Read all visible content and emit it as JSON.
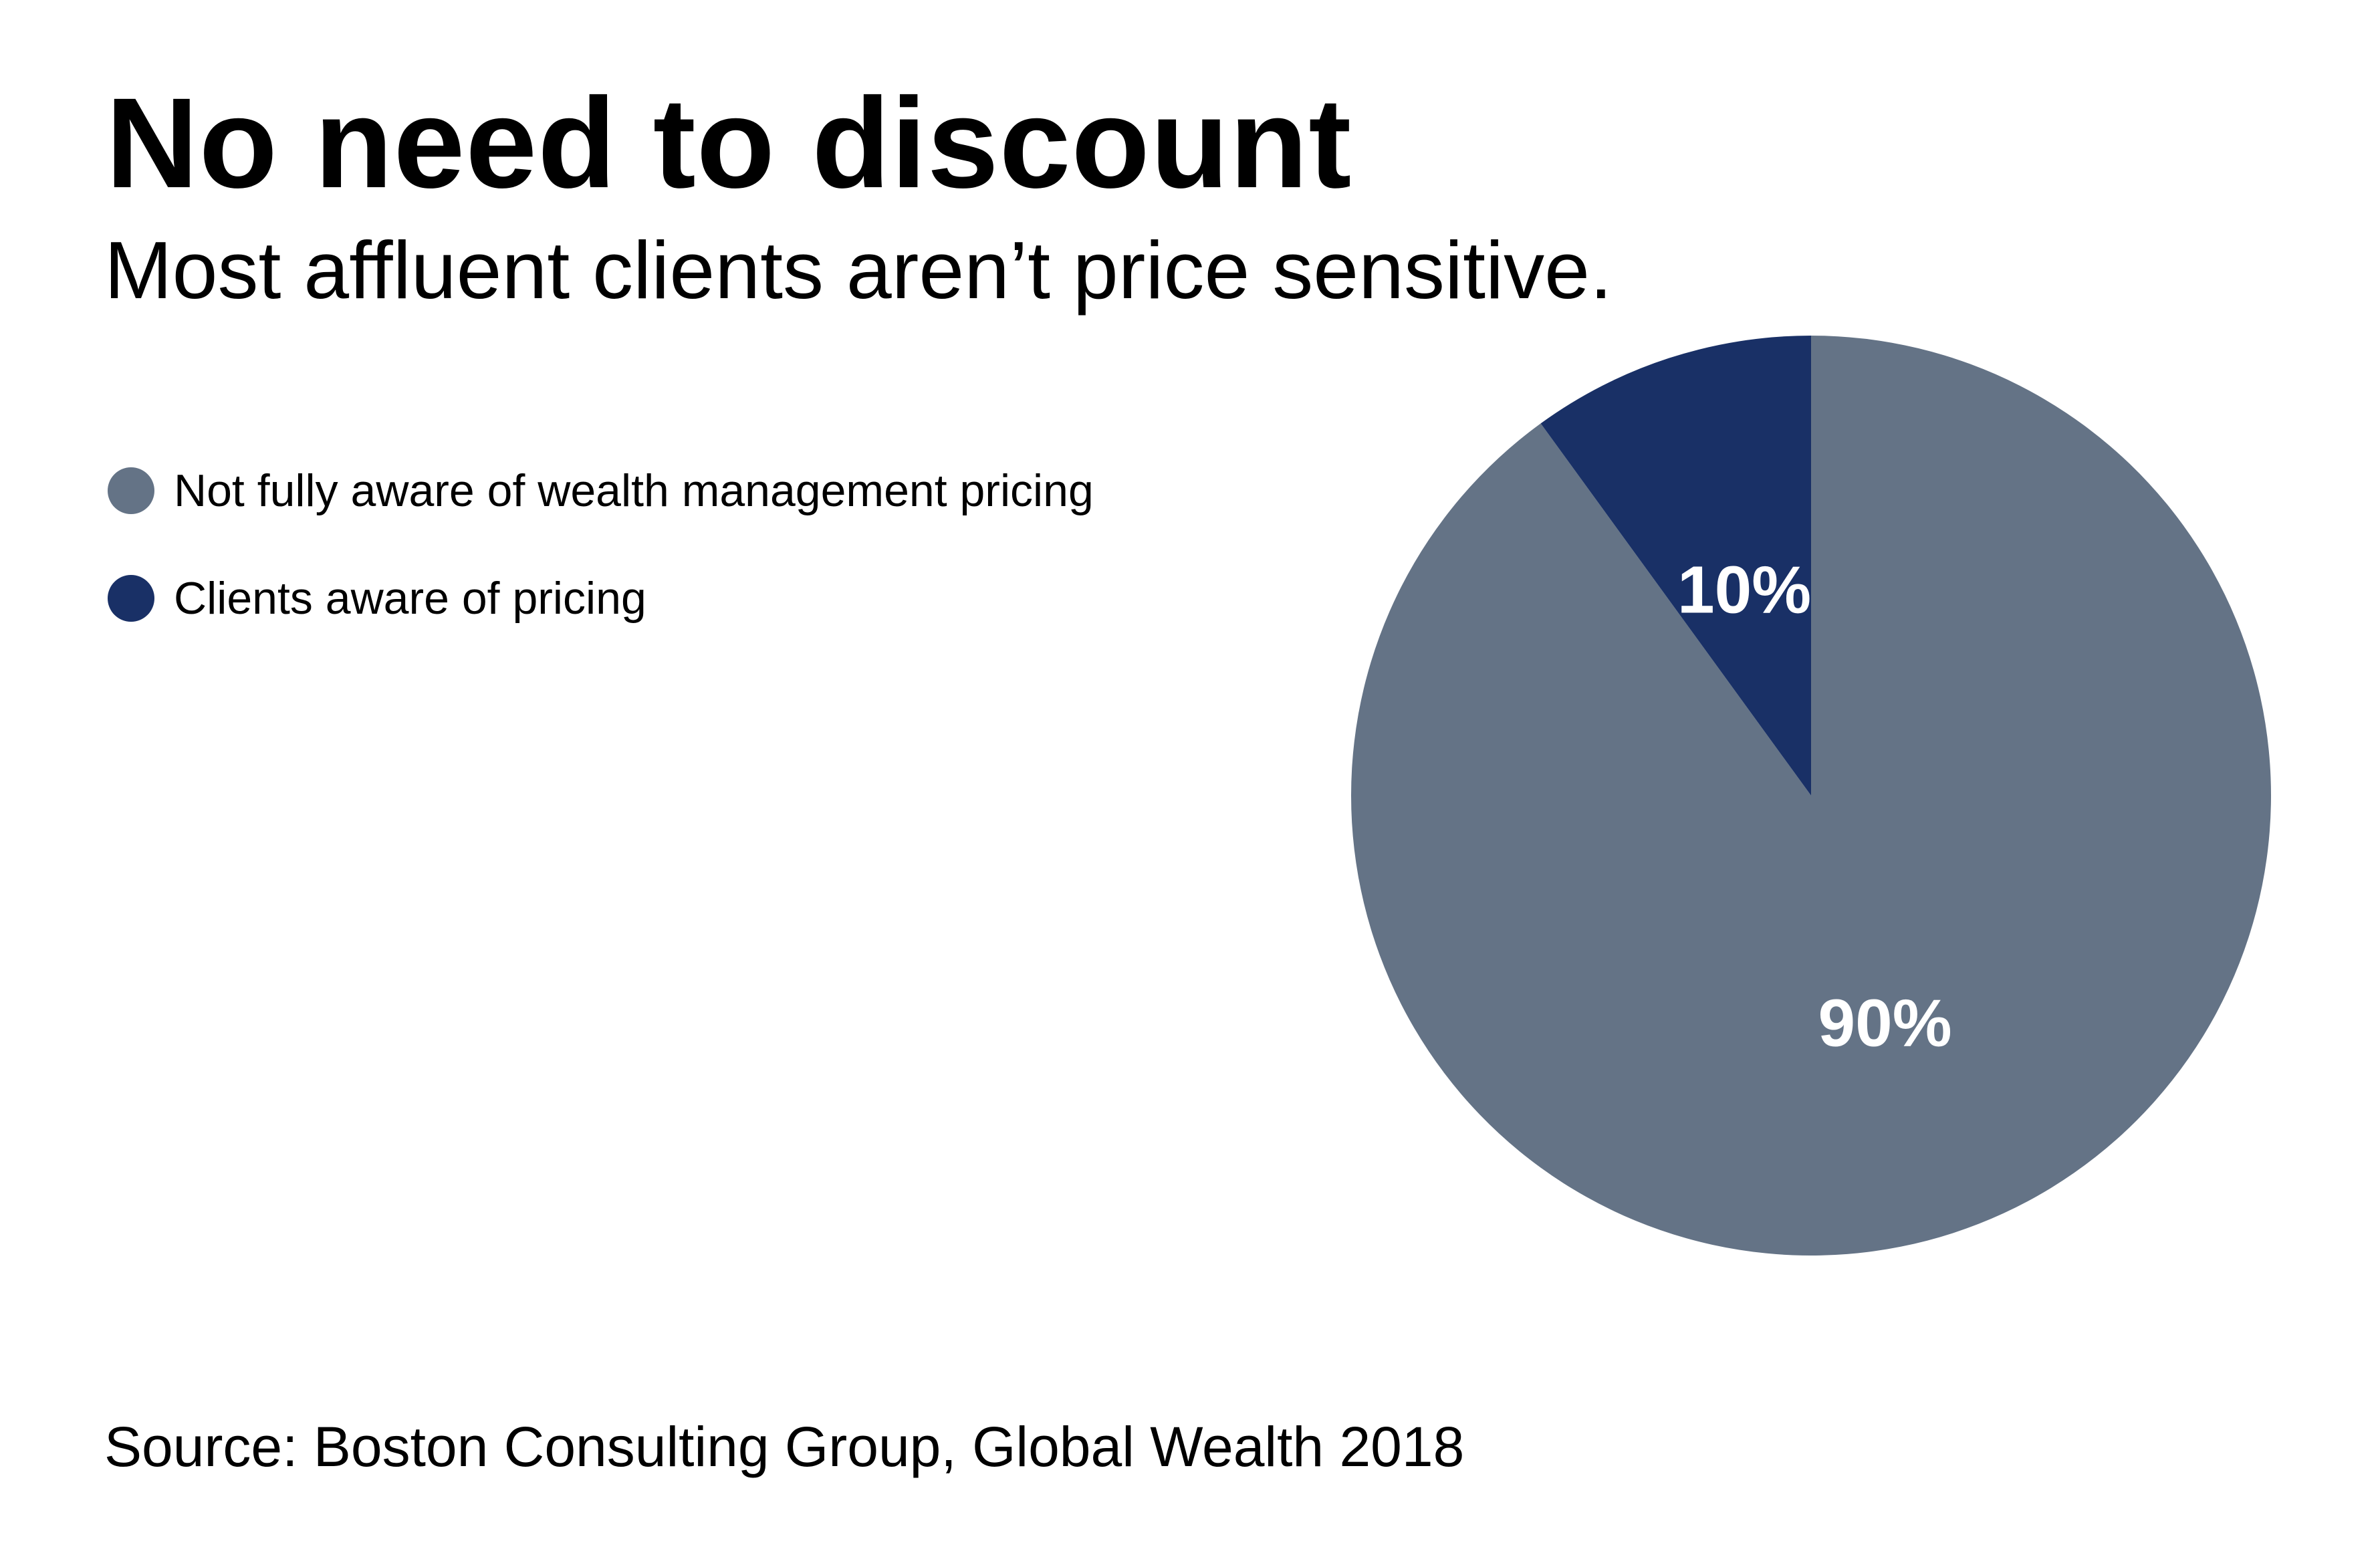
{
  "title": "No need to discount",
  "subtitle": "Most affluent clients aren’t price sensitive.",
  "source": "Source: Boston Consulting Group, Global Wealth 2018",
  "legend": {
    "placement": "top-left",
    "items": [
      {
        "label": "Not fully aware of wealth management pricing",
        "color": "#647386"
      },
      {
        "label": "Clients aware of pricing",
        "color": "#193066"
      }
    ]
  },
  "chart_data": {
    "type": "pie",
    "title": "No need to discount",
    "subtitle": "Most affluent clients aren’t price sensitive.",
    "start_angle": "12 o'clock",
    "direction": "clockwise",
    "slices": [
      {
        "label": "Not fully aware of wealth management pricing",
        "value": 90,
        "display": "90%",
        "color": "#647386"
      },
      {
        "label": "Clients aware of pricing",
        "value": 10,
        "display": "10%",
        "color": "#193066"
      }
    ],
    "legend_placement": "top-left",
    "source": "Source: Boston Consulting Group, Global Wealth 2018"
  }
}
